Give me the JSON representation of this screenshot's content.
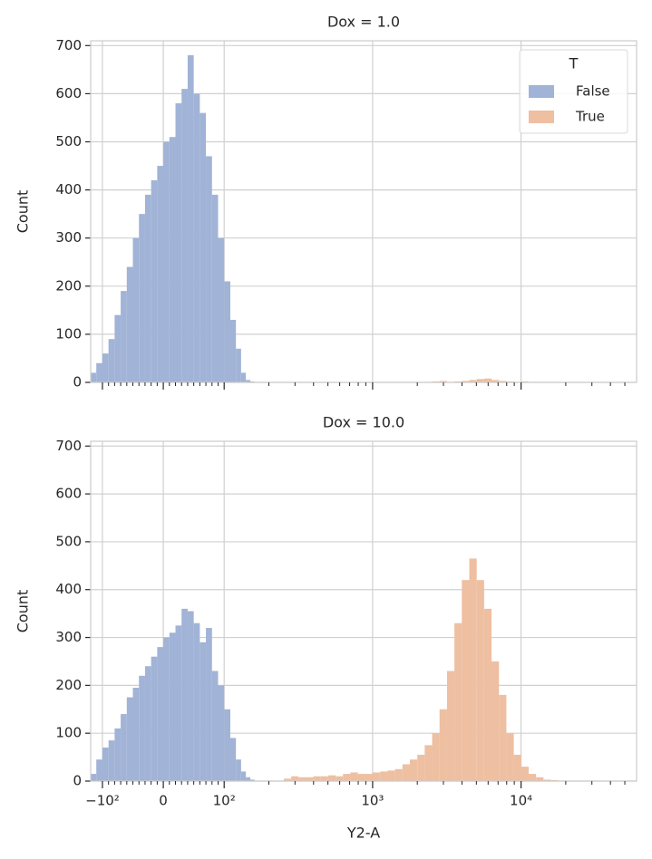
{
  "chart_data": [
    {
      "type": "histogram",
      "title": "Dox = 1.0",
      "ylabel": "Count",
      "xscale": "symlog",
      "linthresh": 100,
      "xlim": [
        -120,
        60000
      ],
      "ylim": [
        0,
        710
      ],
      "grid": true,
      "xticklabels": false,
      "xticks": [
        -100,
        0,
        100,
        1000,
        10000
      ],
      "xminorticks": [
        -90,
        -80,
        -70,
        -60,
        -50,
        -40,
        -30,
        -20,
        -10,
        10,
        20,
        30,
        40,
        50,
        60,
        70,
        80,
        90,
        200,
        300,
        400,
        500,
        600,
        700,
        800,
        900,
        2000,
        3000,
        4000,
        5000,
        6000,
        7000,
        8000,
        9000,
        20000,
        30000,
        40000,
        50000
      ],
      "yticks": [
        0,
        100,
        200,
        300,
        400,
        500,
        600,
        700
      ],
      "legend": {
        "title": "T",
        "loc": "upper right"
      },
      "series": [
        {
          "name": "False",
          "color": "#a1b3d6",
          "bins": [
            -120,
            -110,
            -100,
            -90,
            -80,
            -70,
            -60,
            -50,
            -40,
            -30,
            -20,
            -10,
            0,
            10,
            20,
            30,
            40,
            50,
            60,
            70,
            80,
            90,
            100,
            110,
            120,
            130,
            140,
            150,
            160
          ],
          "values": [
            20,
            40,
            60,
            90,
            140,
            190,
            240,
            300,
            350,
            390,
            420,
            450,
            500,
            510,
            580,
            610,
            680,
            600,
            560,
            470,
            390,
            300,
            210,
            130,
            70,
            20,
            5,
            2
          ]
        },
        {
          "name": "True",
          "color": "#eebfa1",
          "bins": [
            200,
            224,
            252,
            283,
            317,
            356,
            399,
            448,
            502,
            564,
            632,
            710,
            796,
            893,
            1002,
            1125,
            1262,
            1416,
            1589,
            1783,
            2000,
            2244,
            2518,
            2825,
            3170,
            3557,
            3991,
            4478,
            5024,
            5637,
            6325,
            7097,
            7963,
            8934,
            10024,
            11247,
            12619,
            14159,
            15887,
            17825,
            20000
          ],
          "values": [
            0,
            0,
            0,
            0,
            0,
            0,
            0,
            0,
            0,
            0,
            0,
            0,
            0,
            0,
            0,
            0,
            0,
            0,
            0,
            0,
            0,
            0,
            2,
            3,
            0,
            2,
            3,
            5,
            7,
            8,
            5,
            3,
            2,
            0,
            2,
            0,
            0,
            0,
            0,
            0
          ]
        }
      ]
    },
    {
      "type": "histogram",
      "title": "Dox = 10.0",
      "ylabel": "Count",
      "xlabel": "Y2-A",
      "xscale": "symlog",
      "linthresh": 100,
      "xlim": [
        -120,
        60000
      ],
      "ylim": [
        0,
        710
      ],
      "grid": true,
      "xticklabels": true,
      "xticks": [
        {
          "value": -100,
          "label": "−10²"
        },
        0,
        {
          "value": 100,
          "label": "10²"
        },
        {
          "value": 1000,
          "label": "10³"
        },
        {
          "value": 10000,
          "label": "10⁴"
        }
      ],
      "xminorticks": [
        -90,
        -80,
        -70,
        -60,
        -50,
        -40,
        -30,
        -20,
        -10,
        10,
        20,
        30,
        40,
        50,
        60,
        70,
        80,
        90,
        200,
        300,
        400,
        500,
        600,
        700,
        800,
        900,
        2000,
        3000,
        4000,
        5000,
        6000,
        7000,
        8000,
        9000,
        20000,
        30000,
        40000,
        50000
      ],
      "yticks": [
        0,
        100,
        200,
        300,
        400,
        500,
        600,
        700
      ],
      "series": [
        {
          "color": "#a1b3d6",
          "bins": [
            -120,
            -110,
            -100,
            -90,
            -80,
            -70,
            -60,
            -50,
            -40,
            -30,
            -20,
            -10,
            0,
            10,
            20,
            30,
            40,
            50,
            60,
            70,
            80,
            90,
            100,
            110,
            120,
            130,
            140,
            150,
            160
          ],
          "values": [
            15,
            45,
            70,
            85,
            110,
            140,
            175,
            195,
            220,
            240,
            260,
            280,
            300,
            310,
            325,
            360,
            355,
            330,
            290,
            320,
            230,
            200,
            150,
            90,
            45,
            20,
            8,
            3
          ]
        },
        {
          "color": "#eebfa1",
          "bins": [
            200,
            224,
            252,
            283,
            317,
            356,
            399,
            448,
            502,
            564,
            632,
            710,
            796,
            893,
            1002,
            1125,
            1262,
            1416,
            1589,
            1783,
            2000,
            2244,
            2518,
            2825,
            3170,
            3557,
            3991,
            4478,
            5024,
            5637,
            6325,
            7097,
            7963,
            8934,
            10024,
            11247,
            12619,
            14159,
            15887,
            17825,
            20000
          ],
          "values": [
            0,
            0,
            5,
            10,
            8,
            8,
            10,
            10,
            12,
            10,
            15,
            18,
            15,
            15,
            18,
            20,
            22,
            25,
            35,
            45,
            55,
            75,
            100,
            150,
            230,
            330,
            420,
            465,
            420,
            360,
            250,
            180,
            100,
            55,
            30,
            15,
            8,
            3,
            2,
            0
          ]
        }
      ]
    }
  ]
}
